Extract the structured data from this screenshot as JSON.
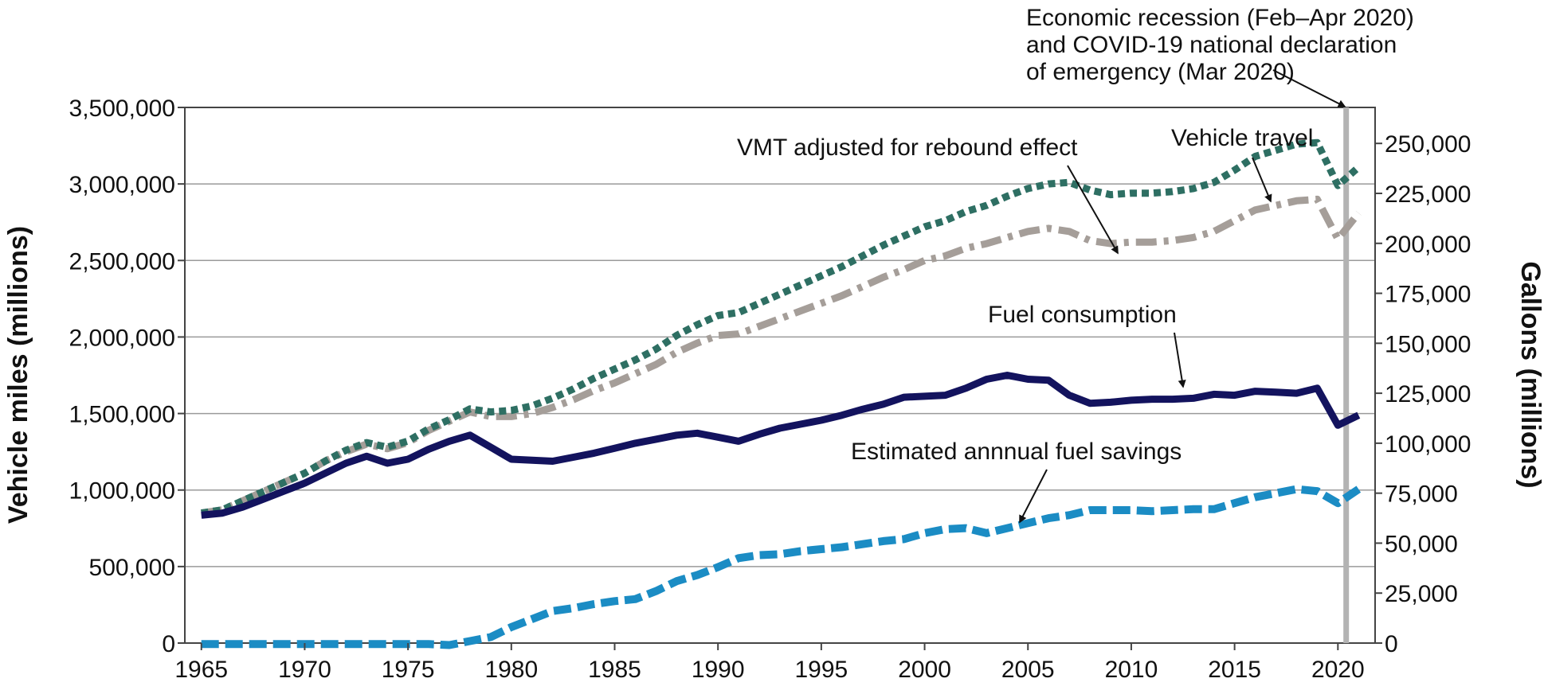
{
  "chart_data": {
    "type": "line",
    "title": "",
    "xlabel": "",
    "ylabel": "Vehicle miles (millions)",
    "y2label": "Gallons (millions)",
    "xlim": [
      1964.2,
      2021.8
    ],
    "ylim": [
      0,
      3500000
    ],
    "y2lim": [
      0,
      268000
    ],
    "x_ticks": [
      "1965",
      "1970",
      "1975",
      "1980",
      "1985",
      "1990",
      "1995",
      "2000",
      "2005",
      "2010",
      "2015",
      "2020"
    ],
    "y_ticks": [
      "0",
      "500,000",
      "1,000,000",
      "1,500,000",
      "2,000,000",
      "2,500,000",
      "3,000,000",
      "3,500,000"
    ],
    "y2_ticks": [
      "0",
      "25,000",
      "50,000",
      "75,000",
      "100,000",
      "125,000",
      "150,000",
      "175,000",
      "200,000",
      "225,000",
      "250,000"
    ],
    "grid": true,
    "legend": "none",
    "x": [
      1965,
      1966,
      1967,
      1968,
      1969,
      1970,
      1971,
      1972,
      1973,
      1974,
      1975,
      1976,
      1977,
      1978,
      1979,
      1980,
      1981,
      1982,
      1983,
      1984,
      1985,
      1986,
      1987,
      1988,
      1989,
      1990,
      1991,
      1992,
      1993,
      1994,
      1995,
      1996,
      1997,
      1998,
      1999,
      2000,
      2001,
      2002,
      2003,
      2004,
      2005,
      2006,
      2007,
      2008,
      2009,
      2010,
      2011,
      2012,
      2013,
      2014,
      2015,
      2016,
      2017,
      2018,
      2019,
      2020,
      2021
    ],
    "series": [
      {
        "name": "Vehicle travel",
        "axis": "left",
        "style": "dotted",
        "color": "#2e6f63",
        "values": [
          850000,
          870000,
          930000,
          990000,
          1050000,
          1110000,
          1190000,
          1260000,
          1310000,
          1280000,
          1320000,
          1400000,
          1460000,
          1530000,
          1510000,
          1520000,
          1550000,
          1600000,
          1660000,
          1730000,
          1790000,
          1850000,
          1920000,
          2010000,
          2080000,
          2140000,
          2160000,
          2220000,
          2280000,
          2340000,
          2400000,
          2460000,
          2530000,
          2600000,
          2660000,
          2720000,
          2760000,
          2820000,
          2860000,
          2920000,
          2970000,
          3000000,
          3010000,
          2960000,
          2930000,
          2940000,
          2940000,
          2950000,
          2970000,
          3010000,
          3090000,
          3180000,
          3220000,
          3260000,
          3270000,
          2990000,
          3110000
        ]
      },
      {
        "name": "VMT adjusted for rebound effect",
        "axis": "left",
        "style": "dash-dot",
        "color": "#a59e99",
        "values": [
          850000,
          870000,
          930000,
          990000,
          1050000,
          1110000,
          1190000,
          1250000,
          1300000,
          1270000,
          1310000,
          1390000,
          1450000,
          1510000,
          1480000,
          1480000,
          1500000,
          1540000,
          1590000,
          1650000,
          1700000,
          1760000,
          1820000,
          1900000,
          1960000,
          2010000,
          2020000,
          2070000,
          2120000,
          2170000,
          2220000,
          2270000,
          2330000,
          2390000,
          2440000,
          2500000,
          2530000,
          2580000,
          2610000,
          2650000,
          2690000,
          2710000,
          2690000,
          2630000,
          2610000,
          2620000,
          2620000,
          2630000,
          2650000,
          2690000,
          2760000,
          2830000,
          2860000,
          2890000,
          2900000,
          2640000,
          2810000
        ]
      },
      {
        "name": "Fuel consumption",
        "axis": "right",
        "style": "solid",
        "color": "#13135e",
        "values": [
          64000,
          65000,
          68000,
          72000,
          76000,
          80000,
          85000,
          90000,
          93500,
          90000,
          92000,
          97000,
          101000,
          104000,
          98000,
          92000,
          91500,
          91000,
          93000,
          95000,
          97500,
          100000,
          102000,
          104000,
          105000,
          103000,
          101000,
          104500,
          107500,
          109500,
          111500,
          114000,
          117000,
          119500,
          123000,
          123500,
          124000,
          127500,
          132000,
          134000,
          132000,
          131500,
          124000,
          120000,
          120500,
          121500,
          122000,
          122000,
          122500,
          124500,
          124000,
          126000,
          125500,
          125000,
          127500,
          109000,
          114000
        ]
      },
      {
        "name": "Estimated annnual fuel savings",
        "axis": "right",
        "style": "dashed",
        "color": "#1b8cc4",
        "values": [
          -500,
          -500,
          -500,
          -500,
          -500,
          -500,
          -500,
          -500,
          -500,
          -500,
          -500,
          -500,
          -1000,
          1000,
          3000,
          8000,
          12000,
          16000,
          17500,
          19500,
          21000,
          22000,
          26000,
          31000,
          34000,
          38000,
          42500,
          44000,
          44500,
          46000,
          47000,
          48000,
          49500,
          51000,
          52000,
          55000,
          57000,
          57500,
          55000,
          57500,
          60000,
          62500,
          64000,
          66500,
          66500,
          66500,
          66000,
          66500,
          67000,
          67000,
          70000,
          73000,
          75000,
          77000,
          76000,
          70000,
          77000
        ]
      }
    ],
    "annotations": [
      {
        "lines": [
          "Economic recession (Feb–Apr 2020)",
          "and COVID-19 national declaration",
          "of emergency (Mar 2020)"
        ],
        "target": "2020 vertical band"
      },
      {
        "lines": [
          "VMT adjusted for rebound effect"
        ],
        "target": "VMT adjusted for rebound effect"
      },
      {
        "lines": [
          "Vehicle travel"
        ],
        "target": "Vehicle travel"
      },
      {
        "lines": [
          "Fuel consumption"
        ],
        "target": "Fuel consumption"
      },
      {
        "lines": [
          "Estimated annnual fuel savings"
        ],
        "target": "Estimated annnual fuel savings"
      }
    ],
    "event_band": {
      "x": 2020.4,
      "color": "#b3b3b3"
    }
  }
}
